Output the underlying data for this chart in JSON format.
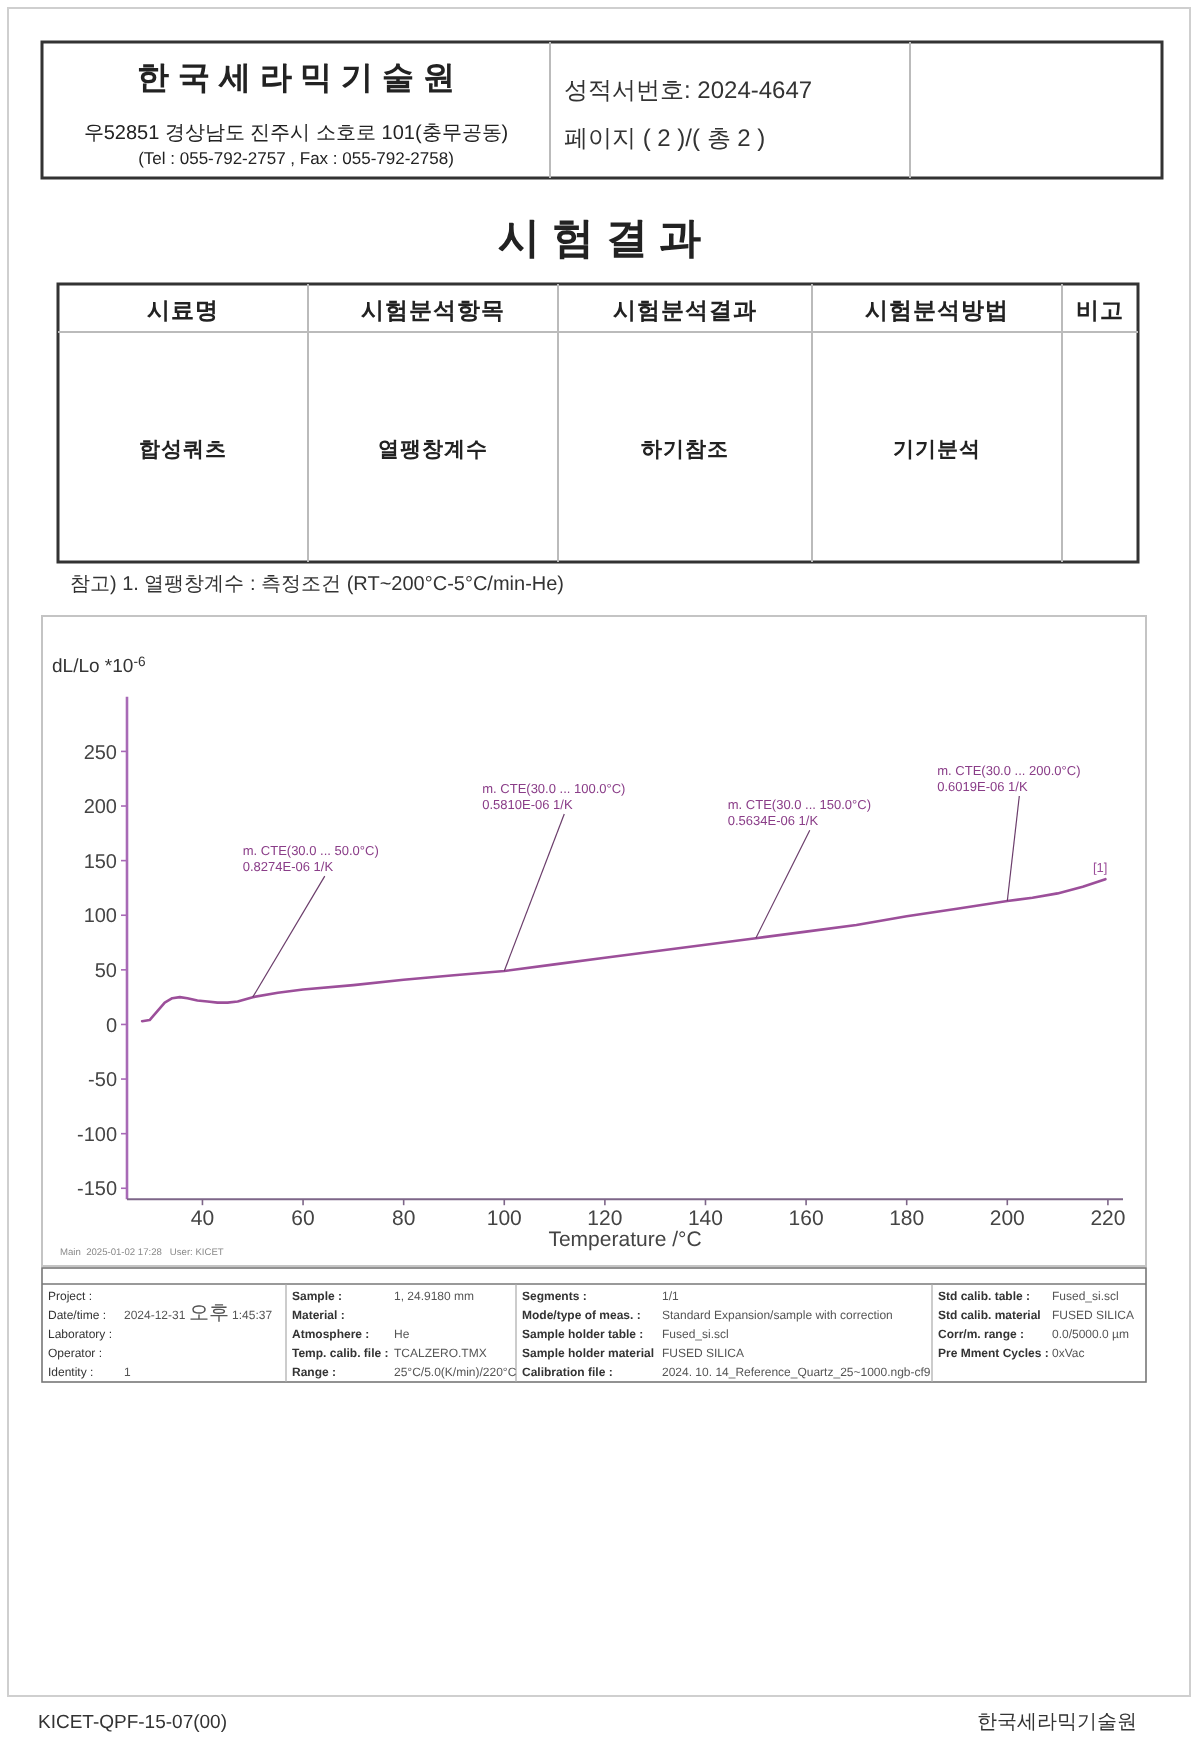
{
  "chart_data": {
    "type": "line",
    "title": "시 험 결 과",
    "xlabel": "Temperature /°C",
    "ylabel": "dL/Lo *10$^{-6}$",
    "xlim": [
      25,
      223
    ],
    "ylim": [
      -160,
      300
    ],
    "xticks": [
      40,
      60,
      80,
      100,
      120,
      140,
      160,
      180,
      200,
      220
    ],
    "yticks": [
      -150,
      -100,
      -50,
      0,
      50,
      100,
      150,
      200,
      250
    ],
    "line_style": "solid",
    "series": [
      {
        "name": "[1]",
        "color": "#9c4f9a",
        "x": [
          28,
          29.5,
          31,
          32.5,
          34,
          35.5,
          37,
          39,
          41,
          43,
          45,
          47,
          50,
          55,
          60,
          70,
          80,
          90,
          100,
          110,
          120,
          130,
          140,
          150,
          160,
          170,
          180,
          190,
          200,
          205,
          210,
          215,
          219.5
        ],
        "values": [
          3,
          4,
          12,
          20,
          24,
          25,
          24,
          22,
          21,
          20,
          20,
          21,
          25,
          29,
          32,
          36,
          41,
          45,
          49,
          55,
          61,
          67,
          73,
          79,
          85,
          91,
          99,
          106,
          113,
          116,
          120,
          126,
          133
        ]
      }
    ],
    "annotations": [
      {
        "text": "m. CTE(30.0 ... 50.0°C)\n0.8274E-06 1/K",
        "x": 50,
        "y": 25
      },
      {
        "text": "m. CTE(30.0 ... 100.0°C)\n0.5810E-06 1/K",
        "x": 100,
        "y": 49
      },
      {
        "text": "m. CTE(30.0 ... 150.0°C)\n0.5634E-06 1/K",
        "x": 150,
        "y": 79
      },
      {
        "text": "m. CTE(30.0 ... 200.0°C)\n0.6019E-06 1/K",
        "x": 200,
        "y": 113
      },
      "한 국 세 라 믹 기 술 원",
      "우52851 경상남도 진주시 소호로 101(충무공동)",
      "(Tel : 055-792-2757 , Fax : 055-792-2758)",
      "성적서번호: 2024-4647",
      "페이지 ( 2 )/( 총 2 )",
      "시료명",
      "시험분석항목",
      "시험분석결과",
      "시험분석방법",
      "비고",
      "합성쿼츠",
      "열팽창계수",
      "하기참조",
      "기기분석",
      "참고) 1. 열팽창계수 : 측정조건 (RT~200°C-5°C/min-He)",
      "Main  2025-01-02 17:28   User: KICET",
      "Project :",
      "Date/time :",
      "2024-12-31 오후 1:45:37",
      "Laboratory :",
      "Operator :",
      "Identity :",
      "1",
      "Sample :",
      "1, 24.9180 mm",
      "Material :",
      "Atmosphere :",
      "He",
      "Temp. calib. file :",
      "TCALZERO.TMX",
      "Range :",
      "25°C/5.0(K/min)/220°C",
      "Segments :",
      "1/1",
      "Mode/type of meas. :",
      "Standard Expansion/sample with correction",
      "Sample holder table :",
      "Fused_si.scl",
      "Sample holder material",
      "FUSED SILICA",
      "Calibration file :",
      "2024. 10. 14_Reference_Quartz_25~1000.ngb-cf9",
      "Std calib. table :",
      "Fused_si.scl",
      "Std calib. material",
      "FUSED SILICA",
      "Corr/m. range :",
      "0.0/5000.0 µm",
      "Pre Mment Cycles :",
      "0xVac",
      "KICET-QPF-15-07(00)",
      "한국세라믹기술원"
    ]
  }
}
